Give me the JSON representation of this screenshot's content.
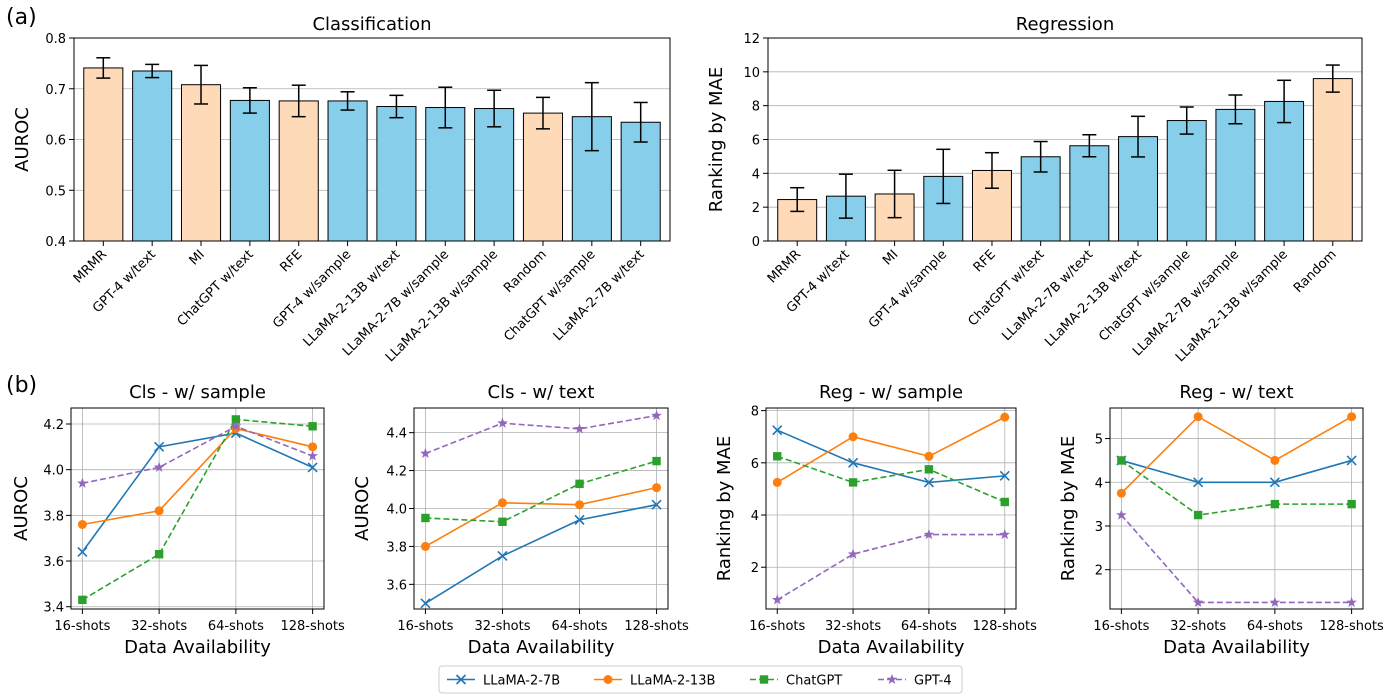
{
  "figure": {
    "panel_a_label": "(a)",
    "panel_b_label": "(b)"
  },
  "legend": [
    {
      "name": "LLaMA-2-7B",
      "color": "#1f77b4",
      "marker": "x",
      "dash": false
    },
    {
      "name": "LLaMA-2-13B",
      "color": "#ff7f0e",
      "marker": "o",
      "dash": false
    },
    {
      "name": "ChatGPT",
      "color": "#2ca02c",
      "marker": "s",
      "dash": true
    },
    {
      "name": "GPT-4",
      "color": "#9467bd",
      "marker": "*",
      "dash": true
    }
  ],
  "colors": {
    "llm": "#87ceeb",
    "baseline": "#ffdab9",
    "grid": "#b0b0b0"
  },
  "chart_data": [
    {
      "id": "classification",
      "type": "bar",
      "title": "Classification",
      "xlabel": "",
      "ylabel": "AUROC",
      "ylim": [
        0.4,
        0.8
      ],
      "yticks": [
        "0.4",
        "0.5",
        "0.6",
        "0.7",
        "0.8"
      ],
      "ytick_values": [
        0.4,
        0.5,
        0.6,
        0.7,
        0.8
      ],
      "categories": [
        "MRMR",
        "GPT-4 w/text",
        "MI",
        "ChatGPT w/text",
        "RFE",
        "GPT-4 w/sample",
        "LLaMA-2-13B w/text",
        "LLaMA-2-7B w/sample",
        "LLaMA-2-13B w/sample",
        "Random",
        "ChatGPT w/sample",
        "LLaMA-2-7B w/text"
      ],
      "values": [
        0.741,
        0.735,
        0.708,
        0.677,
        0.676,
        0.676,
        0.665,
        0.663,
        0.661,
        0.652,
        0.645,
        0.634
      ],
      "errors": [
        0.02,
        0.013,
        0.038,
        0.025,
        0.031,
        0.018,
        0.022,
        0.04,
        0.036,
        0.031,
        0.067,
        0.039
      ],
      "group": [
        "baseline",
        "llm",
        "baseline",
        "llm",
        "baseline",
        "llm",
        "llm",
        "llm",
        "llm",
        "baseline",
        "llm",
        "llm"
      ],
      "grid": "y"
    },
    {
      "id": "regression",
      "type": "bar",
      "title": "Regression",
      "xlabel": "",
      "ylabel": "Ranking by MAE",
      "ylim": [
        0,
        12
      ],
      "yticks": [
        "0",
        "2",
        "4",
        "6",
        "8",
        "10",
        "12"
      ],
      "ytick_values": [
        0,
        2,
        4,
        6,
        8,
        10,
        12
      ],
      "categories": [
        "MRMR",
        "GPT-4 w/text",
        "MI",
        "GPT-4 w/sample",
        "RFE",
        "ChatGPT w/text",
        "LLaMA-2-7B w/text",
        "LLaMA-2-13B w/text",
        "ChatGPT w/sample",
        "LLaMA-2-7B w/sample",
        "LLaMA-2-13B w/sample",
        "Random"
      ],
      "values": [
        2.45,
        2.65,
        2.78,
        3.82,
        4.17,
        4.98,
        5.63,
        6.17,
        7.12,
        7.78,
        8.25,
        9.6
      ],
      "errors": [
        0.7,
        1.3,
        1.4,
        1.6,
        1.05,
        0.9,
        0.65,
        1.2,
        0.8,
        0.85,
        1.25,
        0.8
      ],
      "group": [
        "baseline",
        "llm",
        "baseline",
        "llm",
        "baseline",
        "llm",
        "llm",
        "llm",
        "llm",
        "llm",
        "llm",
        "baseline"
      ],
      "grid": "y"
    },
    {
      "id": "cls-sample",
      "type": "line",
      "title": "Cls - w/ sample",
      "xlabel": "Data Availability",
      "ylabel": "AUROC",
      "categories": [
        "16-shots",
        "32-shots",
        "64-shots",
        "128-shots"
      ],
      "ylim": [
        3.39,
        4.27
      ],
      "yticks": [
        "3.4",
        "3.6",
        "3.8",
        "4.0",
        "4.2"
      ],
      "ytick_values": [
        3.4,
        3.6,
        3.8,
        4.0,
        4.2
      ],
      "series": [
        {
          "name": "LLaMA-2-7B",
          "values": [
            3.64,
            4.1,
            4.16,
            4.01
          ]
        },
        {
          "name": "LLaMA-2-13B",
          "values": [
            3.76,
            3.82,
            4.18,
            4.1
          ]
        },
        {
          "name": "ChatGPT",
          "values": [
            3.43,
            3.63,
            4.22,
            4.19
          ]
        },
        {
          "name": "GPT-4",
          "values": [
            3.94,
            4.01,
            4.19,
            4.06
          ]
        }
      ],
      "grid": "both"
    },
    {
      "id": "cls-text",
      "type": "line",
      "title": "Cls - w/ text",
      "xlabel": "Data Availability",
      "ylabel": "AUROC",
      "categories": [
        "16-shots",
        "32-shots",
        "64-shots",
        "128-shots"
      ],
      "ylim": [
        3.47,
        4.53
      ],
      "yticks": [
        "3.6",
        "3.8",
        "4.0",
        "4.2",
        "4.4"
      ],
      "ytick_values": [
        3.6,
        3.8,
        4.0,
        4.2,
        4.4
      ],
      "series": [
        {
          "name": "LLaMA-2-7B",
          "values": [
            3.5,
            3.75,
            3.94,
            4.02
          ]
        },
        {
          "name": "LLaMA-2-13B",
          "values": [
            3.8,
            4.03,
            4.02,
            4.11
          ]
        },
        {
          "name": "ChatGPT",
          "values": [
            3.95,
            3.93,
            4.13,
            4.25
          ]
        },
        {
          "name": "GPT-4",
          "values": [
            4.29,
            4.45,
            4.42,
            4.49
          ]
        }
      ],
      "grid": "both"
    },
    {
      "id": "reg-sample",
      "type": "line",
      "title": "Reg - w/ sample",
      "xlabel": "Data Availability",
      "ylabel": "Ranking by MAE",
      "categories": [
        "16-shots",
        "32-shots",
        "64-shots",
        "128-shots"
      ],
      "ylim": [
        0.4,
        8.1
      ],
      "yticks": [
        "2",
        "4",
        "6",
        "8"
      ],
      "ytick_values": [
        2,
        4,
        6,
        8
      ],
      "series": [
        {
          "name": "LLaMA-2-7B",
          "values": [
            7.25,
            6.0,
            5.25,
            5.5
          ]
        },
        {
          "name": "LLaMA-2-13B",
          "values": [
            5.25,
            7.0,
            6.25,
            7.75
          ]
        },
        {
          "name": "ChatGPT",
          "values": [
            6.25,
            5.25,
            5.75,
            4.5
          ]
        },
        {
          "name": "GPT-4",
          "values": [
            0.75,
            2.5,
            3.25,
            3.25
          ]
        }
      ],
      "grid": "both"
    },
    {
      "id": "reg-text",
      "type": "line",
      "title": "Reg - w/ text",
      "xlabel": "Data Availability",
      "ylabel": "Ranking by MAE",
      "categories": [
        "16-shots",
        "32-shots",
        "64-shots",
        "128-shots"
      ],
      "ylim": [
        1.1,
        5.7
      ],
      "yticks": [
        "2",
        "3",
        "4",
        "5"
      ],
      "ytick_values": [
        2,
        3,
        4,
        5
      ],
      "series": [
        {
          "name": "LLaMA-2-7B",
          "values": [
            4.5,
            4.0,
            4.0,
            4.5
          ]
        },
        {
          "name": "LLaMA-2-13B",
          "values": [
            3.75,
            5.5,
            4.5,
            5.5
          ]
        },
        {
          "name": "ChatGPT",
          "values": [
            4.5,
            3.25,
            3.5,
            3.5
          ]
        },
        {
          "name": "GPT-4",
          "values": [
            3.25,
            1.25,
            1.25,
            1.25
          ]
        }
      ],
      "grid": "both"
    }
  ]
}
